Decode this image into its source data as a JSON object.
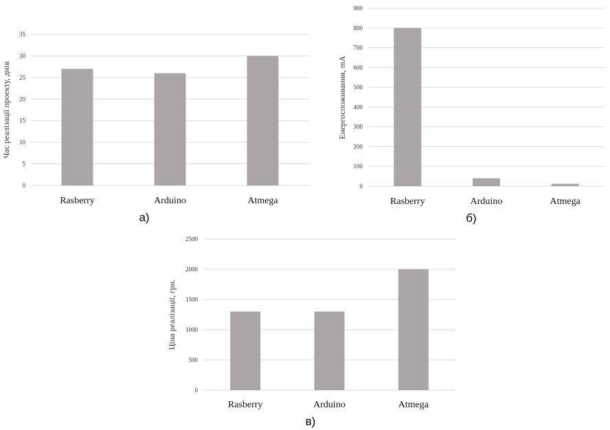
{
  "chart_data": [
    {
      "type": "bar",
      "panel_label": "а)",
      "categories": [
        "Rasberry",
        "Arduino",
        "Atmega"
      ],
      "values": [
        27,
        26,
        30
      ],
      "ylabel": "Час реалізації проекту, днів",
      "ylim": [
        0,
        35
      ],
      "yticks": [
        0,
        5,
        10,
        15,
        20,
        25,
        30,
        35
      ],
      "grid": true,
      "bar_color": "#aba5a5"
    },
    {
      "type": "bar",
      "panel_label": "б)",
      "categories": [
        "Rasberry",
        "Arduino",
        "Atmega"
      ],
      "values": [
        800,
        40,
        12
      ],
      "ylabel": "Енергоспоживання, mA",
      "ylim": [
        0,
        900
      ],
      "yticks": [
        0,
        100,
        200,
        300,
        400,
        500,
        600,
        700,
        800,
        900
      ],
      "grid": true,
      "bar_color": "#aba5a5"
    },
    {
      "type": "bar",
      "panel_label": "в)",
      "categories": [
        "Rasberry",
        "Arduino",
        "Atmega"
      ],
      "values": [
        1300,
        1300,
        2000
      ],
      "ylabel": "Ціна реалізації, грн.",
      "ylim": [
        0,
        2500
      ],
      "yticks": [
        0,
        500,
        1000,
        1500,
        2000,
        2500
      ],
      "grid": true,
      "bar_color": "#aba5a5"
    }
  ]
}
